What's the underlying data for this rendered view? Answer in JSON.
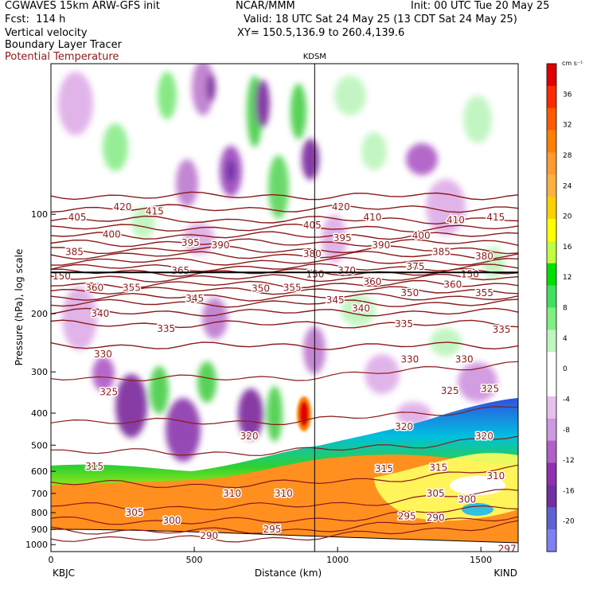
{
  "header": {
    "line1_left": "CGWAVES 15km ARW-GFS init",
    "line2_left": "Fcst:  114 h",
    "line3_left": "Vertical velocity",
    "line4_left": "Boundary Layer Tracer",
    "line5_left": "Potential Temperature",
    "center_org": "NCAR/MMM",
    "init": "Init: 00 UTC Tue 20 May 25",
    "valid": "Valid: 18 UTC Sat 24 May 25 (13 CDT Sat 24 May 25)",
    "xy": "XY= 150.5,136.9 to 260.4,139.6",
    "potential_temp_color": "#8b1a1a"
  },
  "chart_data": {
    "type": "cross-section",
    "station_marker": "KDSM",
    "xlabel": "Distance (km)",
    "ylabel": "Pressure (hPa), log scale",
    "x_ticks": [
      0,
      500,
      1000,
      1500
    ],
    "x_tick_labels": [
      "0",
      "500",
      "1000",
      "1500"
    ],
    "xlim": [
      0,
      1630
    ],
    "y_ticks": [
      100,
      200,
      300,
      400,
      500,
      600,
      700,
      800,
      900,
      1000
    ],
    "y_tick_labels": [
      "100",
      "200",
      "300",
      "400",
      "500",
      "600",
      "700",
      "800",
      "900",
      "1000"
    ],
    "ylim": [
      1050,
      35
    ],
    "left_endpoint": "KBJC",
    "right_endpoint": "KIND",
    "station_x_km": 920,
    "colorbar": {
      "units": "cm s⁻¹",
      "tick_values": [
        36,
        32,
        28,
        24,
        20,
        16,
        12,
        8,
        4,
        0,
        -4,
        -8,
        -12,
        -16,
        -20
      ],
      "tick_labels": [
        "36",
        "32",
        "28",
        "24",
        "20",
        "16",
        "12",
        "8",
        "4",
        "0",
        "-4",
        "-8",
        "-12",
        "-16",
        "-20"
      ],
      "colors": [
        "#e00000",
        "#ff2a00",
        "#ff5a00",
        "#ff8000",
        "#ff9a30",
        "#ffb040",
        "#ffd000",
        "#ffff00",
        "#bfff40",
        "#00e000",
        "#40e060",
        "#80ee80",
        "#c0f5c0",
        "#ffffff",
        "#ffffff",
        "#e8c0ee",
        "#d098e0",
        "#b060c8",
        "#9030b0",
        "#7030a0",
        "#6060d0",
        "#8080f0"
      ]
    },
    "theta_labels": [
      {
        "v": "420",
        "x": 218,
        "p": 95
      },
      {
        "v": "415",
        "x": 330,
        "p": 98
      },
      {
        "v": "420",
        "x": 980,
        "p": 95
      },
      {
        "v": "405",
        "x": 60,
        "p": 102
      },
      {
        "v": "405",
        "x": 880,
        "p": 108
      },
      {
        "v": "410",
        "x": 1090,
        "p": 102
      },
      {
        "v": "410",
        "x": 1380,
        "p": 104
      },
      {
        "v": "415",
        "x": 1520,
        "p": 102
      },
      {
        "v": "400",
        "x": 180,
        "p": 115
      },
      {
        "v": "395",
        "x": 455,
        "p": 122
      },
      {
        "v": "390",
        "x": 560,
        "p": 124
      },
      {
        "v": "395",
        "x": 985,
        "p": 118
      },
      {
        "v": "390",
        "x": 1120,
        "p": 124
      },
      {
        "v": "400",
        "x": 1260,
        "p": 116
      },
      {
        "v": "385",
        "x": 50,
        "p": 130
      },
      {
        "v": "380",
        "x": 880,
        "p": 132
      },
      {
        "v": "385",
        "x": 1330,
        "p": 130
      },
      {
        "v": "380",
        "x": 1480,
        "p": 134
      },
      {
        "v": "365",
        "x": 420,
        "p": 148
      },
      {
        "v": "370",
        "x": 1000,
        "p": 148
      },
      {
        "v": "375",
        "x": 1240,
        "p": 144
      },
      {
        "v": "150",
        "x": -10,
        "p": 154
      },
      {
        "v": "150",
        "x": 890,
        "p": 152
      },
      {
        "v": "150",
        "x": 1430,
        "p": 152
      },
      {
        "v": "360",
        "x": 120,
        "p": 167
      },
      {
        "v": "355",
        "x": 250,
        "p": 167
      },
      {
        "v": "350",
        "x": 700,
        "p": 168
      },
      {
        "v": "355",
        "x": 810,
        "p": 167
      },
      {
        "v": "360",
        "x": 1090,
        "p": 160
      },
      {
        "v": "350",
        "x": 1220,
        "p": 173
      },
      {
        "v": "360",
        "x": 1370,
        "p": 163
      },
      {
        "v": "355",
        "x": 1480,
        "p": 173
      },
      {
        "v": "345",
        "x": 470,
        "p": 180
      },
      {
        "v": "345",
        "x": 960,
        "p": 182
      },
      {
        "v": "340",
        "x": 140,
        "p": 200
      },
      {
        "v": "340",
        "x": 1050,
        "p": 193
      },
      {
        "v": "335",
        "x": 370,
        "p": 222
      },
      {
        "v": "335",
        "x": 1200,
        "p": 215
      },
      {
        "v": "335",
        "x": 1540,
        "p": 223
      },
      {
        "v": "330",
        "x": 150,
        "p": 265
      },
      {
        "v": "330",
        "x": 1220,
        "p": 275
      },
      {
        "v": "330",
        "x": 1410,
        "p": 275
      },
      {
        "v": "325",
        "x": 170,
        "p": 345
      },
      {
        "v": "325",
        "x": 1360,
        "p": 342
      },
      {
        "v": "325",
        "x": 1500,
        "p": 338
      },
      {
        "v": "320",
        "x": 660,
        "p": 470
      },
      {
        "v": "320",
        "x": 1200,
        "p": 440
      },
      {
        "v": "320",
        "x": 1480,
        "p": 470
      },
      {
        "v": "315",
        "x": 120,
        "p": 580
      },
      {
        "v": "315",
        "x": 1130,
        "p": 590
      },
      {
        "v": "315",
        "x": 1320,
        "p": 585
      },
      {
        "v": "310",
        "x": 1520,
        "p": 620
      },
      {
        "v": "310",
        "x": 600,
        "p": 700
      },
      {
        "v": "310",
        "x": 780,
        "p": 700
      },
      {
        "v": "305",
        "x": 1310,
        "p": 700
      },
      {
        "v": "300",
        "x": 1420,
        "p": 730
      },
      {
        "v": "305",
        "x": 260,
        "p": 800
      },
      {
        "v": "300",
        "x": 390,
        "p": 845
      },
      {
        "v": "295",
        "x": 740,
        "p": 900
      },
      {
        "v": "295",
        "x": 1210,
        "p": 820
      },
      {
        "v": "290",
        "x": 1310,
        "p": 830
      },
      {
        "v": "290",
        "x": 520,
        "p": 940
      },
      {
        "v": "297",
        "x": 1560,
        "p": 1030
      }
    ],
    "theta_levels": [
      {
        "v": 420,
        "p": 88
      },
      {
        "v": 415,
        "p": 96
      },
      {
        "v": 410,
        "p": 104
      },
      {
        "v": 405,
        "p": 110
      },
      {
        "v": 400,
        "p": 116
      },
      {
        "v": 395,
        "p": 122
      },
      {
        "v": 390,
        "p": 128
      },
      {
        "v": 385,
        "p": 133
      },
      {
        "v": 380,
        "p": 139
      },
      {
        "v": 375,
        "p": 145
      },
      {
        "v": 370,
        "p": 150
      },
      {
        "v": 365,
        "p": 156
      },
      {
        "v": 360,
        "p": 163
      },
      {
        "v": 355,
        "p": 170
      },
      {
        "v": 350,
        "p": 178
      },
      {
        "v": 345,
        "p": 186
      },
      {
        "v": 340,
        "p": 198
      },
      {
        "v": 335,
        "p": 215
      },
      {
        "v": 330,
        "p": 250
      },
      {
        "v": 325,
        "p": 310
      },
      {
        "v": 320,
        "p": 420
      },
      {
        "v": 315,
        "p": 520
      },
      {
        "v": 310,
        "p": 650
      },
      {
        "v": 305,
        "p": 760
      },
      {
        "v": 300,
        "p": 840
      },
      {
        "v": 295,
        "p": 900
      },
      {
        "v": 290,
        "p": 950
      }
    ]
  }
}
